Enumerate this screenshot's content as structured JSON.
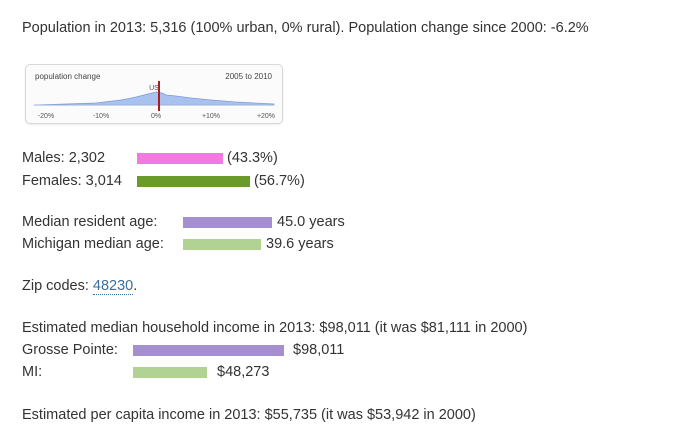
{
  "population_line": "Population in 2013: 5,316 (100% urban, 0% rural). Population change since 2000: -6.2%",
  "pop_chart": {
    "label": "population change",
    "range": "2005 to 2010",
    "marker": "US",
    "ticks": [
      "-20%",
      "-10%",
      "0%",
      "+10%",
      "+20%"
    ],
    "marker_value_pct": 0
  },
  "gender": {
    "males": {
      "label": "Males: 2,302",
      "pct": "(43.3%)",
      "share": 43.3,
      "color": "#f07ae0"
    },
    "females": {
      "label": "Females: 3,014",
      "pct": "(56.7%)",
      "share": 56.7,
      "color": "#6a9a2a"
    }
  },
  "age": {
    "resident": {
      "label": "Median resident age:",
      "value": "45.0 years",
      "years": 45.0,
      "color": "#a58fd0"
    },
    "state": {
      "label": "Michigan median age:",
      "value": "39.6 years",
      "years": 39.6,
      "color": "#b2d293"
    }
  },
  "zip": {
    "label": "Zip codes: ",
    "code": "48230",
    "suffix": "."
  },
  "income": {
    "headline": "Estimated median household income in 2013: $98,011 (it was $81,111 in 2000)",
    "local": {
      "label": "Grosse Pointe:",
      "value": "$98,011",
      "amount": 98011,
      "color": "#a58fd0"
    },
    "state": {
      "label": "MI:",
      "value": "$48,273",
      "amount": 48273,
      "color": "#b2d293"
    }
  },
  "per_capita": "Estimated per capita income in 2013: $55,735 (it was $53,942 in 2000)"
}
